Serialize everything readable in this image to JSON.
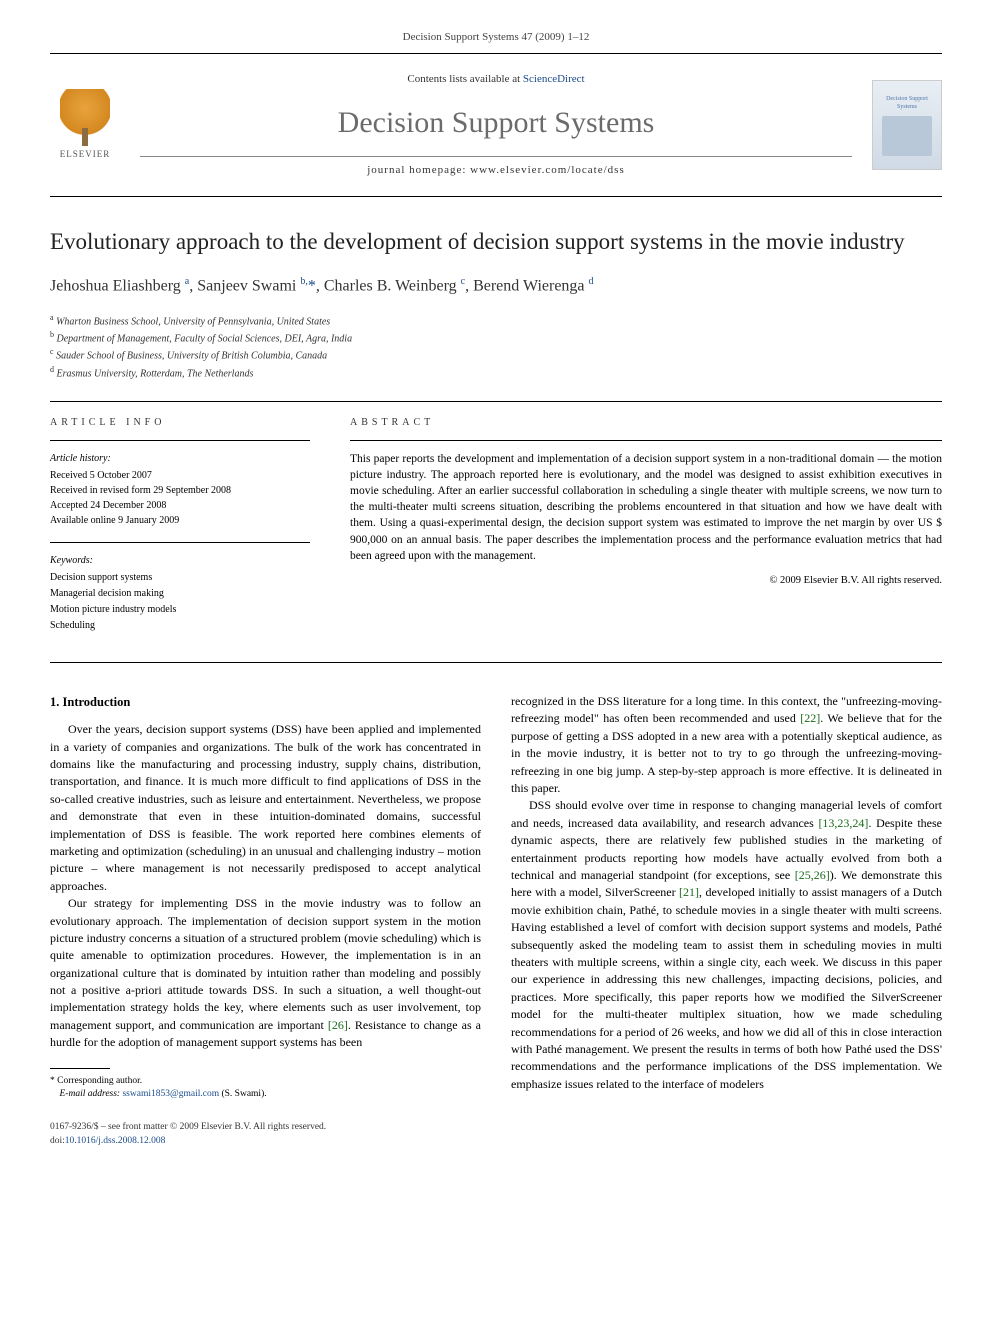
{
  "header": {
    "running_head": "Decision Support Systems 47 (2009) 1–12"
  },
  "masthead": {
    "publisher_name": "ELSEVIER",
    "contents_prefix": "Contents lists available at ",
    "contents_link_text": "ScienceDirect",
    "journal_name": "Decision Support Systems",
    "homepage_label": "journal homepage: ",
    "homepage_url": "www.elsevier.com/locate/dss",
    "cover_caption": "Decision Support Systems"
  },
  "article": {
    "title": "Evolutionary approach to the development of decision support systems in the movie industry",
    "authors_html": "Jehoshua Eliashberg <sup>a</sup>, Sanjeev Swami <sup>b,</sup><span class='corr-star'>*</span>, Charles B. Weinberg <sup>c</sup>, Berend Wierenga <sup>d</sup>",
    "affiliations": [
      {
        "marker": "a",
        "text": "Wharton Business School, University of Pennsylvania, United States"
      },
      {
        "marker": "b",
        "text": "Department of Management, Faculty of Social Sciences, DEI, Agra, India"
      },
      {
        "marker": "c",
        "text": "Sauder School of Business, University of British Columbia, Canada"
      },
      {
        "marker": "d",
        "text": "Erasmus University, Rotterdam, The Netherlands"
      }
    ]
  },
  "info": {
    "section_label": "article info",
    "history_label": "Article history:",
    "history": [
      "Received 5 October 2007",
      "Received in revised form 29 September 2008",
      "Accepted 24 December 2008",
      "Available online 9 January 2009"
    ],
    "keywords_label": "Keywords:",
    "keywords": [
      "Decision support systems",
      "Managerial decision making",
      "Motion picture industry models",
      "Scheduling"
    ]
  },
  "abstract": {
    "section_label": "abstract",
    "text": "This paper reports the development and implementation of a decision support system in a non-traditional domain — the motion picture industry. The approach reported here is evolutionary, and the model was designed to assist exhibition executives in movie scheduling. After an earlier successful collaboration in scheduling a single theater with multiple screens, we now turn to the multi-theater multi screens situation, describing the problems encountered in that situation and how we have dealt with them. Using a quasi-experimental design, the decision support system was estimated to improve the net margin by over US $ 900,000 on an annual basis. The paper describes the implementation process and the performance evaluation metrics that had been agreed upon with the management.",
    "copyright": "© 2009 Elsevier B.V. All rights reserved."
  },
  "body": {
    "section1_heading": "1. Introduction",
    "para1": "Over the years, decision support systems (DSS) have been applied and implemented in a variety of companies and organizations. The bulk of the work has concentrated in domains like the manufacturing and processing industry, supply chains, distribution, transportation, and finance. It is much more difficult to find applications of DSS in the so-called creative industries, such as leisure and entertainment. Nevertheless, we propose and demonstrate that even in these intuition-dominated domains, successful implementation of DSS is feasible. The work reported here combines elements of marketing and optimization (scheduling) in an unusual and challenging industry – motion picture – where management is not necessarily predisposed to accept analytical approaches.",
    "para2": "Our strategy for implementing DSS in the movie industry was to follow an evolutionary approach. The implementation of decision support system in the motion picture industry concerns a situation of a structured problem (movie scheduling) which is quite amenable to optimization procedures. However, the implementation is in an organizational culture that is dominated by intuition rather than modeling and possibly not a positive a-priori attitude towards DSS. In such a situation, a well thought-out implementation strategy holds the key, where elements such as user involvement, top management support, and communication are important ",
    "para2_ref": "[26]",
    "para2_tail": ". Resistance to change as a hurdle for the adoption of management support systems has been",
    "para3_lead": "recognized in the DSS literature for a long time. In this context, the \"unfreezing-moving-refreezing model\" has often been recommended and used ",
    "para3_ref": "[22]",
    "para3_tail": ". We believe that for the purpose of getting a DSS adopted in a new area with a potentially skeptical audience, as in the movie industry, it is better not to try to go through the unfreezing-moving-refreezing in one big jump. A step-by-step approach is more effective. It is delineated in this paper.",
    "para4_lead": "DSS should evolve over time in response to changing managerial levels of comfort and needs, increased data availability, and research advances ",
    "para4_ref1": "[13,23,24]",
    "para4_mid1": ". Despite these dynamic aspects, there are relatively few published studies in the marketing of entertainment products reporting how models have actually evolved from both a technical and managerial standpoint (for exceptions, see ",
    "para4_ref2": "[25,26]",
    "para4_mid2": "). We demonstrate this here with a model, SilverScreener ",
    "para4_ref3": "[21]",
    "para4_tail": ", developed initially to assist managers of a Dutch movie exhibition chain, Pathé, to schedule movies in a single theater with multi screens. Having established a level of comfort with decision support systems and models, Pathé subsequently asked the modeling team to assist them in scheduling movies in multi theaters with multiple screens, within a single city, each week. We discuss in this paper our experience in addressing this new challenges, impacting decisions, policies, and practices. More specifically, this paper reports how we modified the SilverScreener model for the multi-theater multiplex situation, how we made scheduling recommendations for a period of 26 weeks, and how we did all of this in close interaction with Pathé management. We present the results in terms of both how Pathé used the DSS' recommendations and the performance implications of the DSS implementation. We emphasize issues related to the interface of modelers"
  },
  "footnotes": {
    "corr_label": "* Corresponding author.",
    "email_label": "E-mail address:",
    "email": "sswami1853@gmail.com",
    "email_who": "(S. Swami)."
  },
  "footer": {
    "issn_line": "0167-9236/$ – see front matter © 2009 Elsevier B.V. All rights reserved.",
    "doi_label": "doi:",
    "doi": "10.1016/j.dss.2008.12.008"
  },
  "colors": {
    "link_blue": "#1a4b8c",
    "ref_green": "#1a6b1a",
    "journal_grey": "#6b6b6b",
    "logo_orange": "#e8a33d"
  }
}
